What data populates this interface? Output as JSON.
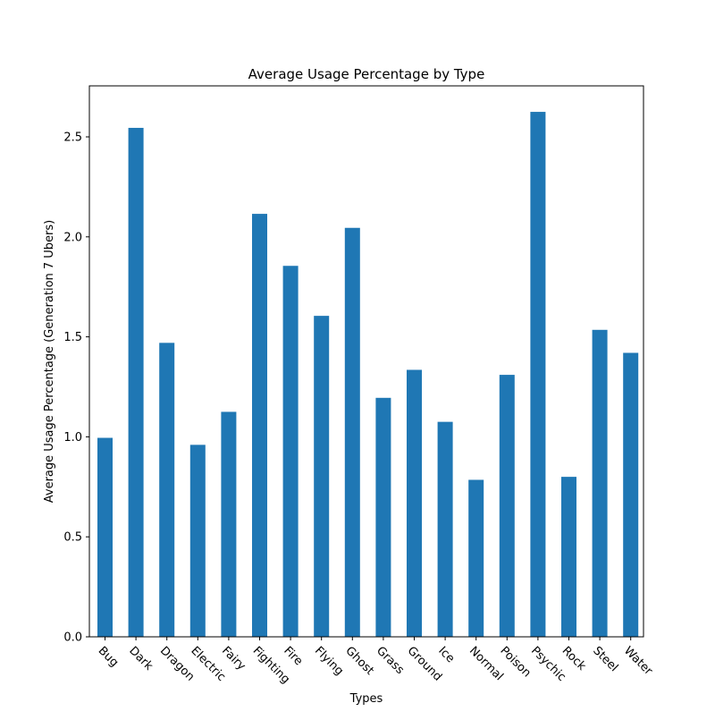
{
  "chart_data": {
    "type": "bar",
    "title": "Average Usage Percentage by Type",
    "xlabel": "Types",
    "ylabel": "Average Usage Percentage (Generation 7 Ubers)",
    "categories": [
      "Bug",
      "Dark",
      "Dragon",
      "Electric",
      "Fairy",
      "Fighting",
      "Fire",
      "Flying",
      "Ghost",
      "Grass",
      "Ground",
      "Ice",
      "Normal",
      "Poison",
      "Psychic",
      "Rock",
      "Steel",
      "Water"
    ],
    "values": [
      0.995,
      2.545,
      1.47,
      0.96,
      1.125,
      2.115,
      1.855,
      1.605,
      2.045,
      1.195,
      1.335,
      1.075,
      0.785,
      1.31,
      2.625,
      0.8,
      1.535,
      1.42
    ],
    "ylim": [
      0,
      2.755
    ],
    "yticks": [
      "0.0",
      "0.5",
      "1.0",
      "1.5",
      "2.0",
      "2.5"
    ],
    "bar_color": "#1f77b4",
    "grid": false
  }
}
